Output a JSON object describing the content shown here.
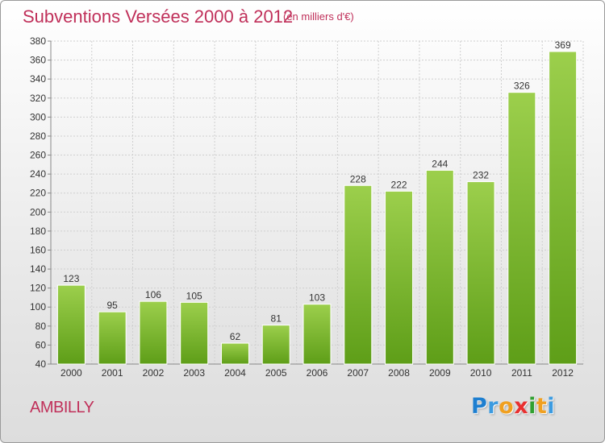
{
  "chart_data": {
    "type": "bar",
    "title": "Subventions Versées 2000 à 2012",
    "subtitle": "(en milliers d'€)",
    "categories": [
      "2000",
      "2001",
      "2002",
      "2003",
      "2004",
      "2005",
      "2006",
      "2007",
      "2008",
      "2009",
      "2010",
      "2011",
      "2012"
    ],
    "values": [
      123,
      95,
      106,
      105,
      62,
      81,
      103,
      228,
      222,
      244,
      232,
      326,
      369
    ],
    "ylim": [
      40,
      380
    ],
    "ytick_step": 20,
    "grid": true,
    "bar_color_top": "#9ccf4c",
    "bar_color_bottom": "#5e9e18"
  },
  "footer": {
    "commune": "AMBILLY",
    "logo_letters": [
      "P",
      "r",
      "o",
      "x",
      "i",
      "t",
      "i"
    ],
    "logo_colors": [
      "#1e7fd0",
      "#3c9be0",
      "#f0a020",
      "#e83030",
      "#30a030",
      "#f0a020",
      "#3c9be0"
    ]
  }
}
